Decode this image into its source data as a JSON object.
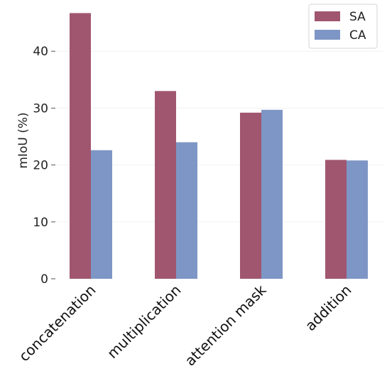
{
  "chart_data": {
    "type": "bar",
    "categories": [
      "concatenation",
      "multiplication",
      "attention mask",
      "addition"
    ],
    "series": [
      {
        "name": "SA",
        "color": "#a0566f",
        "values": [
          46.7,
          33.0,
          29.2,
          20.9
        ]
      },
      {
        "name": "CA",
        "color": "#7e96c5",
        "values": [
          22.6,
          24.0,
          29.7,
          20.8
        ]
      }
    ],
    "ylabel": "mIoU (%)",
    "xlabel": "",
    "ylim": [
      0,
      48
    ],
    "yticks": [
      0,
      10,
      20,
      30,
      40
    ],
    "grid": true,
    "legend_position": "top-right"
  }
}
